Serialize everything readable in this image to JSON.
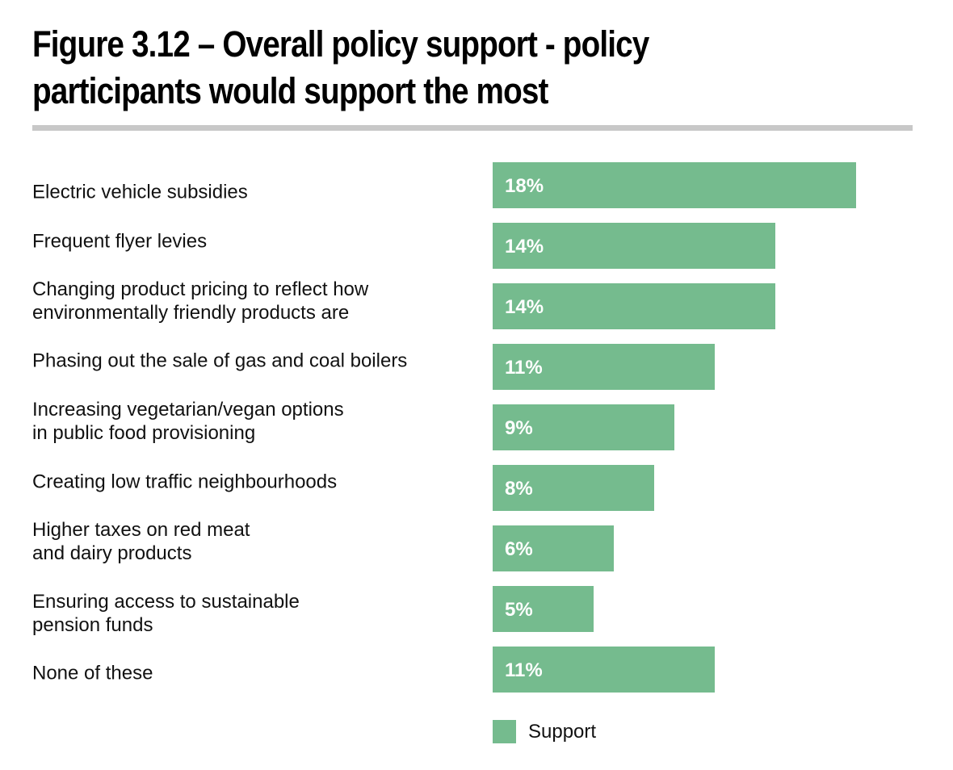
{
  "chart_data": {
    "type": "bar",
    "orientation": "horizontal",
    "title_lines": [
      "Figure 3.12 – Overall policy support - policy",
      "participants would support the most"
    ],
    "categories": [
      "Electric vehicle subsidies",
      "Frequent flyer levies",
      "Changing product pricing to reflect how\nenvironmentally friendly products are",
      "Phasing out the sale of gas and coal boilers",
      "Increasing vegetarian/vegan options\nin public food provisioning",
      "Creating low traffic neighbourhoods",
      "Higher taxes on red meat\nand dairy products",
      "Ensuring access to sustainable\npension funds",
      "None of these"
    ],
    "series": [
      {
        "name": "Support",
        "values": [
          18,
          14,
          14,
          11,
          9,
          8,
          6,
          5,
          11
        ],
        "labels": [
          "18%",
          "14%",
          "14%",
          "11%",
          "9%",
          "8%",
          "6%",
          "5%",
          "11%"
        ],
        "color": "#75bb8e"
      }
    ],
    "xlim": [
      0,
      18
    ],
    "grid": false,
    "legend_position": "bottom-center",
    "data_label_color": "#ffffff"
  }
}
